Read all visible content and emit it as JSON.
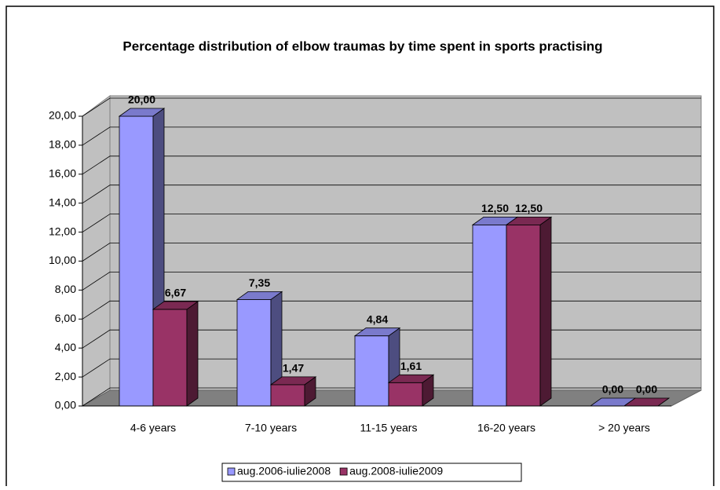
{
  "chart_data": {
    "type": "bar3d",
    "title": "Percentage distribution of elbow traumas by time spent in sports practising",
    "categories": [
      "4-6 years",
      "7-10 years",
      "11-15 years",
      "16-20 years",
      "> 20 years"
    ],
    "series": [
      {
        "name": "aug.2006-iulie2008",
        "color": "#9999ff",
        "values": [
          20,
          7.35,
          4.84,
          12.5,
          0
        ],
        "value_labels": [
          "20,00",
          "7,35",
          "4,84",
          "12,50",
          "0,00"
        ]
      },
      {
        "name": "aug.2008-iulie2009",
        "color": "#993366",
        "values": [
          6.67,
          1.47,
          1.61,
          12.5,
          0
        ],
        "value_labels": [
          "6,67",
          "1,47",
          "1,61",
          "12,50",
          "0,00"
        ]
      }
    ],
    "ylim": [
      0,
      20
    ],
    "yticks": [
      {
        "value": 0,
        "label": "0,00"
      },
      {
        "value": 2,
        "label": "2,00"
      },
      {
        "value": 4,
        "label": "4,00"
      },
      {
        "value": 6,
        "label": "6,00"
      },
      {
        "value": 8,
        "label": "8,00"
      },
      {
        "value": 10,
        "label": "10,00"
      },
      {
        "value": 12,
        "label": "12,00"
      },
      {
        "value": 14,
        "label": "14,00"
      },
      {
        "value": 16,
        "label": "16,00"
      },
      {
        "value": 18,
        "label": "18,00"
      },
      {
        "value": 20,
        "label": "20,00"
      }
    ],
    "grid": true
  }
}
